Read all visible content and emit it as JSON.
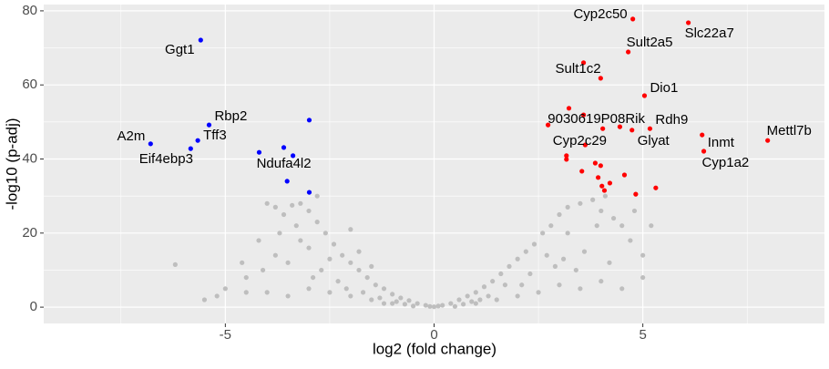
{
  "chart_data": {
    "type": "scatter",
    "x_label": "log2 (fold change)",
    "y_label": "-log10 (p-adj)",
    "xlim": [
      -9.35,
      9.35
    ],
    "ylim": [
      -4.4,
      81.7
    ],
    "xticks": [
      -5,
      0,
      5
    ],
    "yticks": [
      0,
      20,
      40,
      60,
      80
    ],
    "grid": true,
    "panel_color": "#ebebeb",
    "series": [
      {
        "color": "#bebebe",
        "x": [
          -0.2,
          -0.4,
          -0.6,
          -0.8,
          -1,
          -1.2,
          -1.4,
          -1.6,
          -1.8,
          -2,
          -2.2,
          -2.4,
          -2.6,
          -2.8,
          -3,
          -3.2,
          -3.4,
          -3.6,
          -3.8,
          -4,
          -1,
          -1.5,
          -2,
          -2.5,
          -3,
          -3.5,
          -4,
          -4.5,
          -5,
          -5.5,
          -6.2,
          -4.5,
          -3.8,
          -3.2,
          -2.7,
          -2.3,
          -1.7,
          -1.3,
          -0.9,
          -0.5,
          -3.5,
          -3,
          -2.5,
          -4.2,
          -4.6,
          -3.3,
          -2.9,
          -2,
          -1.8,
          -5.2,
          -2.1,
          -1.5,
          -3.7,
          -4.1,
          -2.8,
          -1.2,
          0.2,
          0.4,
          0.6,
          0.8,
          1,
          1.2,
          1.4,
          1.6,
          1.8,
          2,
          2.2,
          2.4,
          2.6,
          2.8,
          3,
          3.2,
          3.5,
          3.8,
          4,
          4.3,
          4.5,
          1,
          1.5,
          2,
          2.5,
          3,
          3.5,
          4,
          4.5,
          5,
          3.2,
          2.7,
          2.3,
          1.7,
          1.3,
          0.9,
          3.6,
          4.2,
          4.7,
          3.9,
          2.9,
          3.4,
          5.2,
          5,
          4.8,
          0.5,
          0,
          -0.1,
          0.1,
          1.1,
          2.1,
          3.1,
          4.1,
          0.7,
          -0.7
        ],
        "values": [
          0.5,
          1,
          1.8,
          2.5,
          3.5,
          5,
          6,
          8,
          10,
          12,
          14,
          17,
          20,
          23,
          26,
          28,
          27.5,
          25,
          27,
          28,
          1,
          2,
          3,
          4,
          5,
          3,
          4,
          4,
          5,
          2,
          11.5,
          8,
          14,
          18,
          10,
          7,
          4,
          2.5,
          1.5,
          0.3,
          12,
          16,
          13,
          18,
          12,
          22,
          8,
          21,
          15,
          3,
          5,
          11,
          20,
          10,
          30,
          1,
          0.5,
          1,
          2,
          3,
          4,
          5.5,
          7,
          9,
          11,
          13,
          15,
          17,
          20,
          22,
          25,
          27,
          28,
          29,
          26,
          24,
          22,
          1,
          2,
          3,
          4,
          6,
          5,
          7,
          5,
          8,
          20,
          14,
          9,
          6,
          3,
          1.5,
          15,
          12,
          18,
          22,
          11,
          10,
          22,
          14,
          26,
          0.2,
          0.1,
          0.2,
          0.3,
          2,
          6,
          13,
          30,
          0.8,
          0.8
        ]
      },
      {
        "color": "#0000ff",
        "x": [
          -5.59,
          -5.39,
          -5.66,
          -6.79,
          -5.83,
          -4.19,
          -3.6,
          -3.38,
          -2.99,
          -3.52,
          -2.99
        ],
        "values": [
          72.1,
          49.2,
          45.0,
          44.1,
          42.8,
          41.8,
          43.1,
          40.9,
          50.5,
          34.0,
          31.0
        ],
        "labels": [
          "Ggt1",
          "Rbp2",
          "Tff3",
          "A2m",
          "Eif4ebp3",
          null,
          null,
          "Ndufa4l2",
          null,
          null,
          null
        ]
      },
      {
        "color": "#ff0000",
        "x": [
          4.76,
          6.09,
          4.65,
          3.58,
          3.99,
          5.04,
          3.23,
          3.58,
          2.73,
          4.04,
          4.45,
          5.17,
          4.74,
          3.62,
          3.17,
          3.17,
          3.86,
          3.99,
          4.56,
          3.54,
          3.93,
          4.02,
          4.08,
          4.21,
          4.83,
          5.31,
          6.42,
          6.46,
          7.99
        ],
        "values": [
          77.8,
          76.8,
          68.9,
          66.0,
          61.8,
          57.1,
          53.7,
          51.9,
          49.2,
          48.2,
          48.7,
          48.2,
          47.8,
          43.8,
          40.9,
          39.9,
          38.9,
          38.2,
          35.7,
          36.7,
          35.0,
          32.7,
          31.5,
          33.5,
          30.5,
          32.2,
          46.5,
          42.1,
          45.0
        ],
        "labels": [
          "Cyp2c50",
          "Slc22a7",
          "Sult2a5",
          "Sult1c2",
          null,
          "Dio1",
          null,
          null,
          null,
          "9030619P08Rik",
          null,
          "Rdh9",
          "Glyat",
          "Cyp2c29",
          null,
          null,
          null,
          null,
          null,
          null,
          null,
          null,
          null,
          null,
          null,
          null,
          "Inmt",
          "Cyp1a2",
          "Mettl7b"
        ]
      }
    ]
  }
}
